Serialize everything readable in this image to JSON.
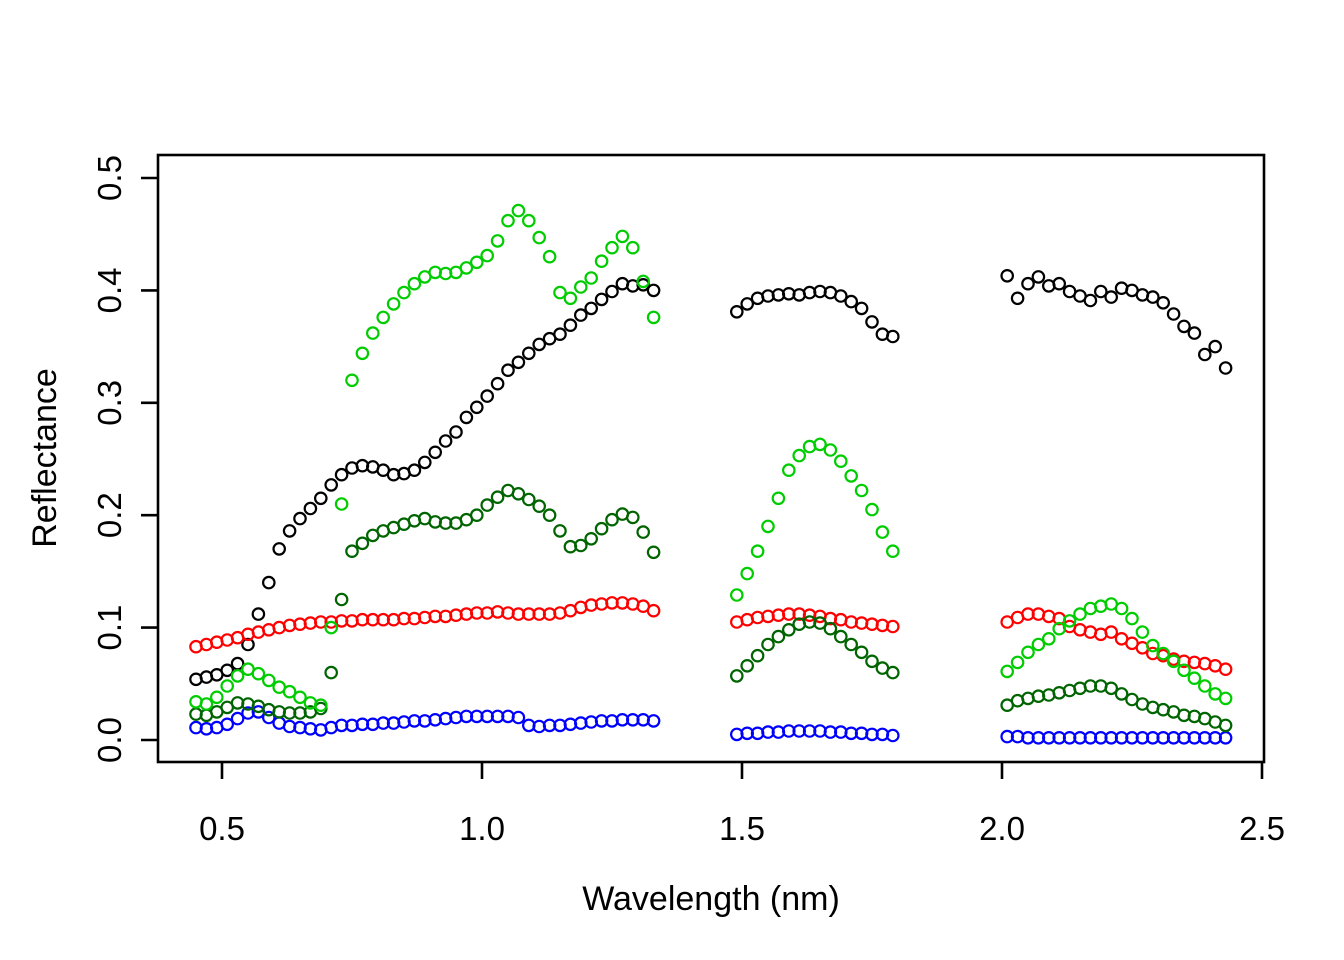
{
  "figure": {
    "background": "#ffffff",
    "axis_color": "#000000"
  },
  "chart_data": {
    "type": "scatter",
    "title": "",
    "xlabel": "Wavelength (nm)",
    "ylabel": "Reflectance",
    "marker": "open-circle",
    "grid": false,
    "legend": "none",
    "xlim": [
      0.375,
      2.505
    ],
    "ylim": [
      -0.02,
      0.52
    ],
    "x_ticks": {
      "values": [
        0.5,
        1.0,
        1.5,
        2.0,
        2.5
      ],
      "labels": [
        "0.5",
        "1.0",
        "1.5",
        "2.0",
        "2.5"
      ]
    },
    "y_ticks": {
      "values": [
        0.0,
        0.1,
        0.2,
        0.3,
        0.4,
        0.5
      ],
      "labels": [
        "0.0",
        "0.1",
        "0.2",
        "0.3",
        "0.4",
        "0.5"
      ]
    },
    "note": "Five reflectance spectra sampled in three wavelength bands separated by gaps (atmospheric absorption windows).",
    "segment_x": [
      [
        0.45,
        0.47,
        0.49,
        0.51,
        0.53,
        0.55,
        0.57,
        0.59,
        0.61,
        0.63,
        0.65,
        0.67,
        0.69,
        0.71,
        0.73,
        0.75,
        0.77,
        0.79,
        0.81,
        0.83,
        0.85,
        0.87,
        0.89,
        0.91,
        0.93,
        0.95,
        0.97,
        0.99,
        1.01,
        1.03,
        1.05,
        1.07,
        1.09,
        1.11,
        1.13,
        1.15,
        1.17,
        1.19,
        1.21,
        1.23,
        1.25,
        1.27,
        1.29,
        1.31,
        1.33
      ],
      [
        1.49,
        1.51,
        1.53,
        1.55,
        1.57,
        1.59,
        1.61,
        1.63,
        1.65,
        1.67,
        1.69,
        1.71,
        1.73,
        1.75,
        1.77,
        1.79
      ],
      [
        2.01,
        2.03,
        2.05,
        2.07,
        2.09,
        2.11,
        2.13,
        2.15,
        2.17,
        2.19,
        2.21,
        2.23,
        2.25,
        2.27,
        2.29,
        2.31,
        2.33,
        2.35,
        2.37,
        2.39,
        2.41,
        2.43
      ]
    ],
    "series": [
      {
        "name": "black",
        "color": "#000000",
        "segments": [
          [
            0.054,
            0.056,
            0.058,
            0.062,
            0.068,
            0.085,
            0.112,
            0.14,
            0.17,
            0.186,
            0.197,
            0.206,
            0.215,
            0.227,
            0.236,
            0.242,
            0.244,
            0.243,
            0.24,
            0.236,
            0.237,
            0.24,
            0.247,
            0.256,
            0.266,
            0.274,
            0.287,
            0.296,
            0.306,
            0.317,
            0.329,
            0.336,
            0.344,
            0.352,
            0.357,
            0.361,
            0.369,
            0.378,
            0.384,
            0.392,
            0.399,
            0.406,
            0.404,
            0.405,
            0.4
          ],
          [
            0.381,
            0.388,
            0.393,
            0.395,
            0.396,
            0.397,
            0.396,
            0.398,
            0.399,
            0.398,
            0.395,
            0.39,
            0.384,
            0.372,
            0.361,
            0.359
          ],
          [
            0.413,
            0.393,
            0.406,
            0.412,
            0.404,
            0.406,
            0.399,
            0.395,
            0.391,
            0.399,
            0.394,
            0.402,
            0.4,
            0.396,
            0.394,
            0.389,
            0.379,
            0.368,
            0.362,
            0.343,
            0.35,
            0.331
          ]
        ]
      },
      {
        "name": "red",
        "color": "#FF0000",
        "segments": [
          [
            0.083,
            0.085,
            0.087,
            0.089,
            0.091,
            0.094,
            0.096,
            0.098,
            0.1,
            0.102,
            0.103,
            0.104,
            0.105,
            0.105,
            0.106,
            0.106,
            0.107,
            0.107,
            0.107,
            0.107,
            0.108,
            0.108,
            0.109,
            0.11,
            0.11,
            0.111,
            0.112,
            0.113,
            0.113,
            0.114,
            0.113,
            0.112,
            0.112,
            0.112,
            0.112,
            0.113,
            0.115,
            0.118,
            0.12,
            0.121,
            0.122,
            0.122,
            0.121,
            0.119,
            0.115
          ],
          [
            0.105,
            0.107,
            0.109,
            0.11,
            0.111,
            0.112,
            0.112,
            0.111,
            0.11,
            0.108,
            0.107,
            0.105,
            0.104,
            0.103,
            0.102,
            0.101
          ],
          [
            0.105,
            0.109,
            0.112,
            0.112,
            0.11,
            0.108,
            0.101,
            0.098,
            0.096,
            0.094,
            0.096,
            0.09,
            0.086,
            0.082,
            0.077,
            0.075,
            0.072,
            0.07,
            0.069,
            0.068,
            0.066,
            0.063
          ]
        ]
      },
      {
        "name": "blue",
        "color": "#0000FF",
        "segments": [
          [
            0.011,
            0.01,
            0.011,
            0.014,
            0.019,
            0.024,
            0.025,
            0.02,
            0.015,
            0.012,
            0.011,
            0.01,
            0.009,
            0.011,
            0.013,
            0.013,
            0.014,
            0.014,
            0.015,
            0.015,
            0.016,
            0.017,
            0.017,
            0.018,
            0.019,
            0.02,
            0.021,
            0.021,
            0.021,
            0.021,
            0.021,
            0.02,
            0.013,
            0.012,
            0.013,
            0.013,
            0.014,
            0.015,
            0.016,
            0.017,
            0.017,
            0.018,
            0.018,
            0.018,
            0.017
          ],
          [
            0.005,
            0.006,
            0.006,
            0.007,
            0.007,
            0.008,
            0.008,
            0.008,
            0.008,
            0.007,
            0.007,
            0.006,
            0.006,
            0.005,
            0.005,
            0.004
          ],
          [
            0.003,
            0.003,
            0.002,
            0.002,
            0.002,
            0.002,
            0.002,
            0.002,
            0.002,
            0.002,
            0.002,
            0.002,
            0.002,
            0.002,
            0.002,
            0.002,
            0.002,
            0.002,
            0.002,
            0.002,
            0.002,
            0.002
          ]
        ]
      },
      {
        "name": "dark-green",
        "color": "#006400",
        "segments": [
          [
            0.023,
            0.022,
            0.025,
            0.029,
            0.033,
            0.032,
            0.03,
            0.027,
            0.025,
            0.024,
            0.024,
            0.025,
            0.028,
            0.06,
            0.125,
            0.168,
            0.175,
            0.182,
            0.186,
            0.189,
            0.192,
            0.195,
            0.197,
            0.194,
            0.193,
            0.193,
            0.196,
            0.2,
            0.209,
            0.216,
            0.222,
            0.219,
            0.214,
            0.208,
            0.2,
            0.186,
            0.172,
            0.173,
            0.179,
            0.188,
            0.196,
            0.201,
            0.198,
            0.185,
            0.167
          ],
          [
            0.057,
            0.066,
            0.075,
            0.085,
            0.092,
            0.098,
            0.103,
            0.105,
            0.104,
            0.099,
            0.092,
            0.085,
            0.078,
            0.07,
            0.064,
            0.06
          ],
          [
            0.031,
            0.035,
            0.037,
            0.039,
            0.04,
            0.042,
            0.044,
            0.046,
            0.048,
            0.048,
            0.046,
            0.041,
            0.036,
            0.032,
            0.029,
            0.027,
            0.025,
            0.022,
            0.021,
            0.019,
            0.016,
            0.013
          ]
        ]
      },
      {
        "name": "bright-green",
        "color": "#00CD00",
        "segments": [
          [
            0.034,
            0.032,
            0.038,
            0.048,
            0.057,
            0.063,
            0.059,
            0.053,
            0.047,
            0.043,
            0.038,
            0.033,
            0.031,
            0.1,
            0.21,
            0.32,
            0.344,
            0.362,
            0.376,
            0.388,
            0.398,
            0.406,
            0.412,
            0.416,
            0.415,
            0.416,
            0.42,
            0.425,
            0.431,
            0.444,
            0.462,
            0.471,
            0.462,
            0.447,
            0.43,
            0.398,
            0.393,
            0.403,
            0.411,
            0.426,
            0.438,
            0.448,
            0.438,
            0.408,
            0.376
          ],
          [
            0.129,
            0.148,
            0.168,
            0.19,
            0.215,
            0.24,
            0.253,
            0.261,
            0.263,
            0.258,
            0.248,
            0.235,
            0.222,
            0.205,
            0.185,
            0.168
          ],
          [
            0.061,
            0.069,
            0.078,
            0.085,
            0.09,
            0.099,
            0.106,
            0.112,
            0.117,
            0.119,
            0.121,
            0.117,
            0.108,
            0.096,
            0.084,
            0.077,
            0.07,
            0.062,
            0.055,
            0.048,
            0.041,
            0.037
          ]
        ]
      }
    ]
  }
}
